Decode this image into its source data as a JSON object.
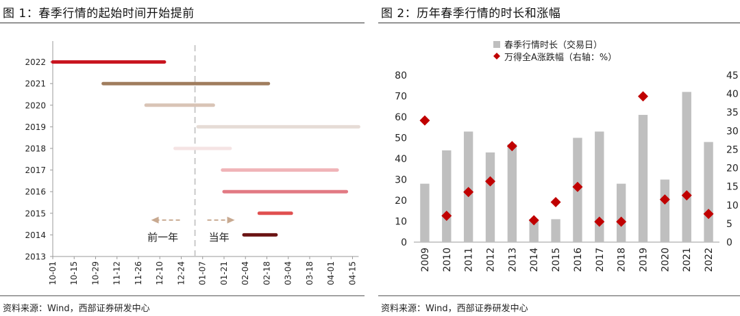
{
  "left": {
    "title": "图 1：春季行情的起始时间开始提前",
    "source": "资料来源：Wind，西部证券研发中心"
  },
  "right": {
    "title": "图 2：历年春季行情的时长和涨幅",
    "source": "资料来源：Wind，西部证券研发中心"
  },
  "chart_data": [
    {
      "type": "bar",
      "subtype": "gantt",
      "categories": [
        "2013",
        "2014",
        "2015",
        "2016",
        "2017",
        "2018",
        "2019",
        "2020",
        "2021",
        "2022"
      ],
      "x_ticks": [
        "10-01",
        "10-15",
        "10-29",
        "11-12",
        "11-26",
        "12-10",
        "12-24",
        "01-07",
        "01-21",
        "02-04",
        "02-18",
        "03-04",
        "03-18",
        "04-01",
        "04-15"
      ],
      "x_range": [
        "10-01",
        "04-19"
      ],
      "reference_line": "01-02",
      "series": [
        {
          "values": [
            null,
            {
              "year": "2014",
              "start": "02-03",
              "end": "02-24",
              "color": "#6b1414"
            },
            {
              "year": "2015",
              "start": "02-13",
              "end": "03-06",
              "color": "#e05050"
            },
            {
              "year": "2016",
              "start": "01-21",
              "end": "04-11",
              "color": "#e27a84"
            },
            {
              "year": "2017",
              "start": "01-20",
              "end": "04-05",
              "color": "#f0b4b8"
            },
            {
              "year": "2018",
              "start": "12-20",
              "end": "01-25",
              "color": "#f5e4e4"
            },
            {
              "year": "2019",
              "start": "01-04",
              "end": "04-19",
              "color": "#e6dcd6"
            },
            {
              "year": "2020",
              "start": "12-01",
              "end": "01-14",
              "color": "#d9c4b6"
            },
            {
              "year": "2021",
              "start": "11-03",
              "end": "02-19",
              "color": "#a07d5e"
            },
            {
              "year": "2022",
              "start": "10-01",
              "end": "12-13",
              "color": "#c8141e"
            }
          ]
        }
      ],
      "annotations": [
        {
          "text": "前一年",
          "arrow": "left",
          "color": "#c8a990"
        },
        {
          "text": "当年",
          "arrow": "right",
          "color": "#c8a990"
        }
      ]
    },
    {
      "type": "bar",
      "categories": [
        "2009",
        "2010",
        "2011",
        "2012",
        "2013",
        "2014",
        "2015",
        "2016",
        "2017",
        "2018",
        "2019",
        "2020",
        "2021",
        "2022"
      ],
      "series": [
        {
          "name": "春季行情时长（交易日）",
          "type": "bar",
          "axis": "left",
          "color": "#bfbfbf",
          "values": [
            28,
            44,
            53,
            43,
            47,
            11,
            11,
            50,
            53,
            28,
            61,
            30,
            72,
            48
          ]
        },
        {
          "name": "万得全A涨跌幅（右轴：%）",
          "type": "scatter",
          "marker": "diamond",
          "axis": "right",
          "color": "#c00000",
          "values": [
            32.8,
            7.1,
            13.5,
            16.4,
            25.9,
            5.9,
            10.8,
            14.9,
            5.5,
            5.5,
            39.3,
            11.5,
            12.6,
            7.6
          ]
        }
      ],
      "y_left": {
        "min": 0,
        "max": 80,
        "ticks": [
          0,
          10,
          20,
          30,
          40,
          50,
          60,
          70,
          80
        ]
      },
      "y_right": {
        "min": 0,
        "max": 45,
        "ticks": [
          0,
          5,
          10,
          15,
          20,
          25,
          30,
          35,
          40,
          45
        ]
      },
      "legend": "top-center"
    }
  ]
}
